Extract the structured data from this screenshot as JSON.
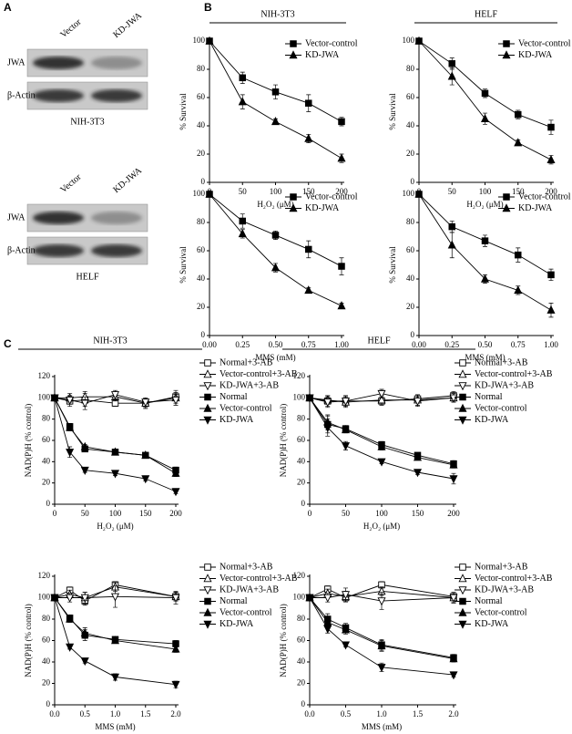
{
  "panels": [
    "A",
    "B",
    "C"
  ],
  "blots": [
    {
      "columns": [
        "Vector",
        "KD-JWA"
      ],
      "rows": [
        "JWA",
        "β-Actin"
      ],
      "cell": "NIH-3T3"
    },
    {
      "columns": [
        "Vector",
        "KD-JWA"
      ],
      "rows": [
        "JWA",
        "β-Actin"
      ],
      "cell": "HELF"
    }
  ],
  "chart_data": [
    {
      "type": "line",
      "header": "NIH-3T3",
      "xlabel": "H₂O₂ (μM)",
      "ylabel": "% Survival",
      "x": [
        0,
        50,
        100,
        150,
        200
      ],
      "xlim": [
        0,
        200
      ],
      "xticks": [
        0,
        50,
        100,
        150,
        200
      ],
      "ylim": [
        0,
        100
      ],
      "yticks": [
        0,
        20,
        40,
        60,
        80,
        100
      ],
      "series": [
        {
          "name": "Vector-control",
          "color": "#000000",
          "marker": "square",
          "filled": true,
          "values": [
            100,
            74,
            64,
            56,
            43
          ],
          "errors": [
            0,
            4,
            5,
            6,
            3
          ]
        },
        {
          "name": "KD-JWA",
          "color": "#000000",
          "marker": "triangle-up",
          "filled": true,
          "values": [
            100,
            57,
            43,
            31,
            17
          ],
          "errors": [
            0,
            5,
            2,
            3,
            3
          ]
        }
      ]
    },
    {
      "type": "line",
      "header": "HELF",
      "xlabel": "H₂O₂ (μM)",
      "ylabel": "% Survival",
      "x": [
        0,
        50,
        100,
        150,
        200
      ],
      "xlim": [
        0,
        200
      ],
      "xticks": [
        0,
        50,
        100,
        150,
        200
      ],
      "ylim": [
        0,
        100
      ],
      "yticks": [
        0,
        20,
        40,
        60,
        80,
        100
      ],
      "series": [
        {
          "name": "Vector-control",
          "color": "#000000",
          "marker": "square",
          "filled": true,
          "values": [
            100,
            84,
            63,
            48,
            39
          ],
          "errors": [
            0,
            4,
            3,
            3,
            5
          ]
        },
        {
          "name": "KD-JWA",
          "color": "#000000",
          "marker": "triangle-up",
          "filled": true,
          "values": [
            100,
            75,
            45,
            28,
            16
          ],
          "errors": [
            0,
            6,
            4,
            2,
            3
          ]
        }
      ]
    },
    {
      "type": "line",
      "xlabel": "MMS (mM)",
      "ylabel": "% Survival",
      "x": [
        0,
        0.25,
        0.5,
        0.75,
        1
      ],
      "xlim": [
        0,
        1
      ],
      "xticks": [
        {
          "value": 0,
          "label": "0.00"
        },
        0.25,
        {
          "value": 0.5,
          "label": "0.50"
        },
        0.75,
        {
          "value": 1,
          "label": "1.00"
        }
      ],
      "ylim": [
        0,
        100
      ],
      "yticks": [
        0,
        20,
        40,
        60,
        80,
        100
      ],
      "series": [
        {
          "name": "Vector-control",
          "color": "#000000",
          "marker": "square",
          "filled": true,
          "values": [
            100,
            81,
            71,
            61,
            49
          ],
          "errors": [
            0,
            5,
            3,
            6,
            6
          ]
        },
        {
          "name": "KD-JWA",
          "color": "#000000",
          "marker": "triangle-up",
          "filled": true,
          "values": [
            100,
            72,
            48,
            32,
            21
          ],
          "errors": [
            0,
            3,
            3,
            2,
            2
          ]
        }
      ]
    },
    {
      "type": "line",
      "xlabel": "MMS (mM)",
      "ylabel": "% Survival",
      "x": [
        0,
        0.25,
        0.5,
        0.75,
        1
      ],
      "xlim": [
        0,
        1
      ],
      "xticks": [
        {
          "value": 0,
          "label": "0.00"
        },
        0.25,
        {
          "value": 0.5,
          "label": "0.50"
        },
        0.75,
        {
          "value": 1,
          "label": "1.00"
        }
      ],
      "ylim": [
        0,
        100
      ],
      "yticks": [
        0,
        20,
        40,
        60,
        80,
        100
      ],
      "series": [
        {
          "name": "Vector-control",
          "color": "#000000",
          "marker": "square",
          "filled": true,
          "values": [
            100,
            77,
            67,
            57,
            43
          ],
          "errors": [
            0,
            4,
            4,
            5,
            4
          ]
        },
        {
          "name": "KD-JWA",
          "color": "#000000",
          "marker": "triangle-up",
          "filled": true,
          "values": [
            100,
            64,
            40,
            32,
            18
          ],
          "errors": [
            0,
            9,
            3,
            3,
            5
          ]
        }
      ]
    },
    {
      "type": "line",
      "header": "NIH-3T3",
      "xlabel": "H₂O₂ (μM)",
      "ylabel": "NAD(P)H (% control)",
      "x": [
        0,
        25,
        50,
        100,
        150,
        200
      ],
      "xlim": [
        0,
        200
      ],
      "xticks": [
        0,
        50,
        100,
        150,
        200
      ],
      "ylim": [
        0,
        120
      ],
      "yticks": [
        0,
        20,
        40,
        60,
        80,
        100,
        120
      ],
      "series": [
        {
          "name": "Normal+3-AB",
          "color": "#000000",
          "marker": "square",
          "filled": false,
          "values": [
            100,
            97,
            98,
            95,
            95,
            101
          ],
          "errors": [
            0,
            5,
            6,
            3,
            5,
            6
          ]
        },
        {
          "name": "Vector-control+3-AB",
          "color": "#000000",
          "marker": "triangle-up",
          "filled": false,
          "values": [
            100,
            100,
            101,
            101,
            95,
            100
          ],
          "errors": [
            0,
            4,
            5,
            4,
            4,
            5
          ]
        },
        {
          "name": "KD-JWA+3-AB",
          "color": "#000000",
          "marker": "triangle-down",
          "filled": false,
          "values": [
            100,
            98,
            95,
            103,
            96,
            98
          ],
          "errors": [
            0,
            4,
            6,
            4,
            4,
            5
          ]
        },
        {
          "name": "Normal",
          "color": "#000000",
          "marker": "square",
          "filled": true,
          "values": [
            100,
            73,
            52,
            49,
            46,
            32
          ],
          "errors": [
            0,
            3,
            2,
            2,
            2,
            3
          ]
        },
        {
          "name": "Vector-control",
          "color": "#000000",
          "marker": "triangle-up",
          "filled": true,
          "values": [
            100,
            72,
            54,
            49,
            46,
            29
          ],
          "errors": [
            0,
            3,
            2,
            2,
            2,
            3
          ]
        },
        {
          "name": "KD-JWA",
          "color": "#000000",
          "marker": "triangle-down",
          "filled": true,
          "values": [
            100,
            49,
            32,
            29,
            24,
            12
          ],
          "errors": [
            0,
            5,
            2,
            2,
            2,
            2
          ]
        }
      ]
    },
    {
      "type": "line",
      "header": "HELF",
      "xlabel": "H₂O₂ (μM)",
      "ylabel": "NAD(P)H (% control)",
      "x": [
        0,
        25,
        50,
        100,
        150,
        200
      ],
      "xlim": [
        0,
        200
      ],
      "xticks": [
        0,
        50,
        100,
        150,
        200
      ],
      "ylim": [
        0,
        120
      ],
      "yticks": [
        0,
        20,
        40,
        60,
        80,
        100,
        120
      ],
      "series": [
        {
          "name": "Normal+3-AB",
          "color": "#000000",
          "marker": "square",
          "filled": false,
          "values": [
            100,
            97,
            97,
            97,
            99,
            102
          ],
          "errors": [
            0,
            5,
            5,
            4,
            4,
            4
          ]
        },
        {
          "name": "Vector-control+3-AB",
          "color": "#000000",
          "marker": "triangle-up",
          "filled": false,
          "values": [
            100,
            98,
            96,
            98,
            98,
            100
          ],
          "errors": [
            0,
            4,
            5,
            4,
            5,
            4
          ]
        },
        {
          "name": "KD-JWA+3-AB",
          "color": "#000000",
          "marker": "triangle-down",
          "filled": false,
          "values": [
            100,
            96,
            97,
            104,
            97,
            100
          ],
          "errors": [
            0,
            5,
            5,
            4,
            5,
            4
          ]
        },
        {
          "name": "Normal",
          "color": "#000000",
          "marker": "square",
          "filled": true,
          "values": [
            100,
            75,
            71,
            56,
            46,
            38
          ],
          "errors": [
            0,
            8,
            3,
            3,
            2,
            3
          ]
        },
        {
          "name": "Vector-control",
          "color": "#000000",
          "marker": "triangle-up",
          "filled": true,
          "values": [
            100,
            77,
            70,
            54,
            44,
            37
          ],
          "errors": [
            0,
            7,
            3,
            3,
            2,
            3
          ]
        },
        {
          "name": "KD-JWA",
          "color": "#000000",
          "marker": "triangle-down",
          "filled": true,
          "values": [
            100,
            72,
            55,
            40,
            30,
            24
          ],
          "errors": [
            0,
            8,
            4,
            2,
            2,
            5
          ]
        }
      ]
    },
    {
      "type": "line",
      "xlabel": "MMS (mM)",
      "ylabel": "NAD(P)H (% control)",
      "x": [
        0,
        0.25,
        0.5,
        1,
        2
      ],
      "xlim": [
        0,
        2
      ],
      "xticks": [
        {
          "value": 0,
          "label": "0.0"
        },
        0.5,
        {
          "value": 1,
          "label": "1.0"
        },
        1.5,
        {
          "value": 2,
          "label": "2.0"
        }
      ],
      "ylim": [
        0,
        120
      ],
      "yticks": [
        0,
        20,
        40,
        60,
        80,
        100,
        120
      ],
      "series": [
        {
          "name": "Normal+3-AB",
          "color": "#000000",
          "marker": "square",
          "filled": false,
          "values": [
            100,
            107,
            97,
            112,
            101
          ],
          "errors": [
            0,
            3,
            4,
            3,
            4
          ]
        },
        {
          "name": "Vector-control+3-AB",
          "color": "#000000",
          "marker": "triangle-up",
          "filled": false,
          "values": [
            100,
            103,
            100,
            110,
            101
          ],
          "errors": [
            0,
            4,
            5,
            4,
            4
          ]
        },
        {
          "name": "KD-JWA+3-AB",
          "color": "#000000",
          "marker": "triangle-down",
          "filled": false,
          "values": [
            100,
            100,
            100,
            101,
            100
          ],
          "errors": [
            0,
            4,
            5,
            10,
            6
          ]
        },
        {
          "name": "Normal",
          "color": "#000000",
          "marker": "square",
          "filled": true,
          "values": [
            100,
            81,
            65,
            61,
            57
          ],
          "errors": [
            0,
            3,
            5,
            2,
            3
          ]
        },
        {
          "name": "Vector-control",
          "color": "#000000",
          "marker": "triangle-up",
          "filled": true,
          "values": [
            100,
            80,
            67,
            60,
            52
          ],
          "errors": [
            0,
            3,
            5,
            2,
            3
          ]
        },
        {
          "name": "KD-JWA",
          "color": "#000000",
          "marker": "triangle-down",
          "filled": true,
          "values": [
            100,
            54,
            41,
            26,
            19
          ],
          "errors": [
            0,
            2,
            2,
            3,
            3
          ]
        }
      ]
    },
    {
      "type": "line",
      "xlabel": "MMS (mM)",
      "ylabel": "NAD(P)H (% control)",
      "x": [
        0,
        0.25,
        0.5,
        1,
        2
      ],
      "xlim": [
        0,
        2
      ],
      "xticks": [
        {
          "value": 0,
          "label": "0.0"
        },
        0.5,
        {
          "value": 1,
          "label": "1.0"
        },
        1.5,
        {
          "value": 2,
          "label": "2.0"
        }
      ],
      "ylim": [
        0,
        120
      ],
      "yticks": [
        0,
        20,
        40,
        60,
        80,
        100,
        120
      ],
      "series": [
        {
          "name": "Normal+3-AB",
          "color": "#000000",
          "marker": "square",
          "filled": false,
          "values": [
            100,
            108,
            100,
            112,
            101
          ],
          "errors": [
            0,
            3,
            4,
            3,
            3
          ]
        },
        {
          "name": "Vector-control+3-AB",
          "color": "#000000",
          "marker": "triangle-up",
          "filled": false,
          "values": [
            100,
            104,
            101,
            106,
            100
          ],
          "errors": [
            0,
            4,
            5,
            4,
            4
          ]
        },
        {
          "name": "KD-JWA+3-AB",
          "color": "#000000",
          "marker": "triangle-down",
          "filled": false,
          "values": [
            100,
            100,
            103,
            97,
            100
          ],
          "errors": [
            0,
            4,
            6,
            8,
            5
          ]
        },
        {
          "name": "Normal",
          "color": "#000000",
          "marker": "square",
          "filled": true,
          "values": [
            100,
            80,
            72,
            56,
            44
          ],
          "errors": [
            0,
            5,
            4,
            5,
            3
          ]
        },
        {
          "name": "Vector-control",
          "color": "#000000",
          "marker": "triangle-up",
          "filled": true,
          "values": [
            100,
            77,
            70,
            55,
            43
          ],
          "errors": [
            0,
            5,
            4,
            5,
            3
          ]
        },
        {
          "name": "KD-JWA",
          "color": "#000000",
          "marker": "triangle-down",
          "filled": true,
          "values": [
            100,
            71,
            56,
            35,
            28
          ],
          "errors": [
            0,
            4,
            2,
            4,
            2
          ]
        }
      ]
    }
  ]
}
